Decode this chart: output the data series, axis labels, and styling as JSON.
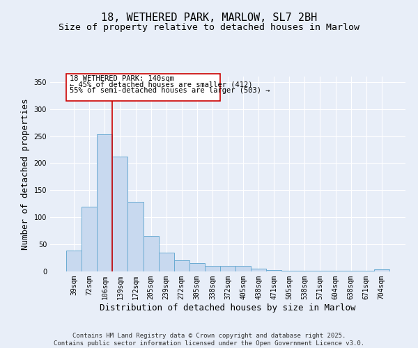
{
  "title": "18, WETHERED PARK, MARLOW, SL7 2BH",
  "subtitle": "Size of property relative to detached houses in Marlow",
  "xlabel": "Distribution of detached houses by size in Marlow",
  "ylabel": "Number of detached properties",
  "categories": [
    "39sqm",
    "72sqm",
    "106sqm",
    "139sqm",
    "172sqm",
    "205sqm",
    "239sqm",
    "272sqm",
    "305sqm",
    "338sqm",
    "372sqm",
    "405sqm",
    "438sqm",
    "471sqm",
    "505sqm",
    "538sqm",
    "571sqm",
    "604sqm",
    "638sqm",
    "671sqm",
    "704sqm"
  ],
  "values": [
    38,
    120,
    253,
    212,
    128,
    65,
    35,
    20,
    15,
    10,
    10,
    10,
    5,
    2,
    1,
    1,
    1,
    1,
    1,
    1,
    4
  ],
  "bar_color": "#c8d9ef",
  "bar_edge_color": "#6aabd2",
  "vline_color": "#cc0000",
  "vline_x_index": 3,
  "annotation_line1": "18 WETHERED PARK: 140sqm",
  "annotation_line2": "← 45% of detached houses are smaller (412)",
  "annotation_line3": "55% of semi-detached houses are larger (503) →",
  "annotation_box_facecolor": "#ffffff",
  "annotation_box_edgecolor": "#cc0000",
  "ylim": [
    0,
    360
  ],
  "yticks": [
    0,
    50,
    100,
    150,
    200,
    250,
    300,
    350
  ],
  "footer": "Contains HM Land Registry data © Crown copyright and database right 2025.\nContains public sector information licensed under the Open Government Licence v3.0.",
  "background_color": "#e8eef8",
  "plot_background": "#e8eef8",
  "grid_color": "#ffffff",
  "title_fontsize": 11,
  "subtitle_fontsize": 9.5,
  "tick_fontsize": 7,
  "label_fontsize": 9,
  "annotation_fontsize": 7.5,
  "footer_fontsize": 6.5
}
